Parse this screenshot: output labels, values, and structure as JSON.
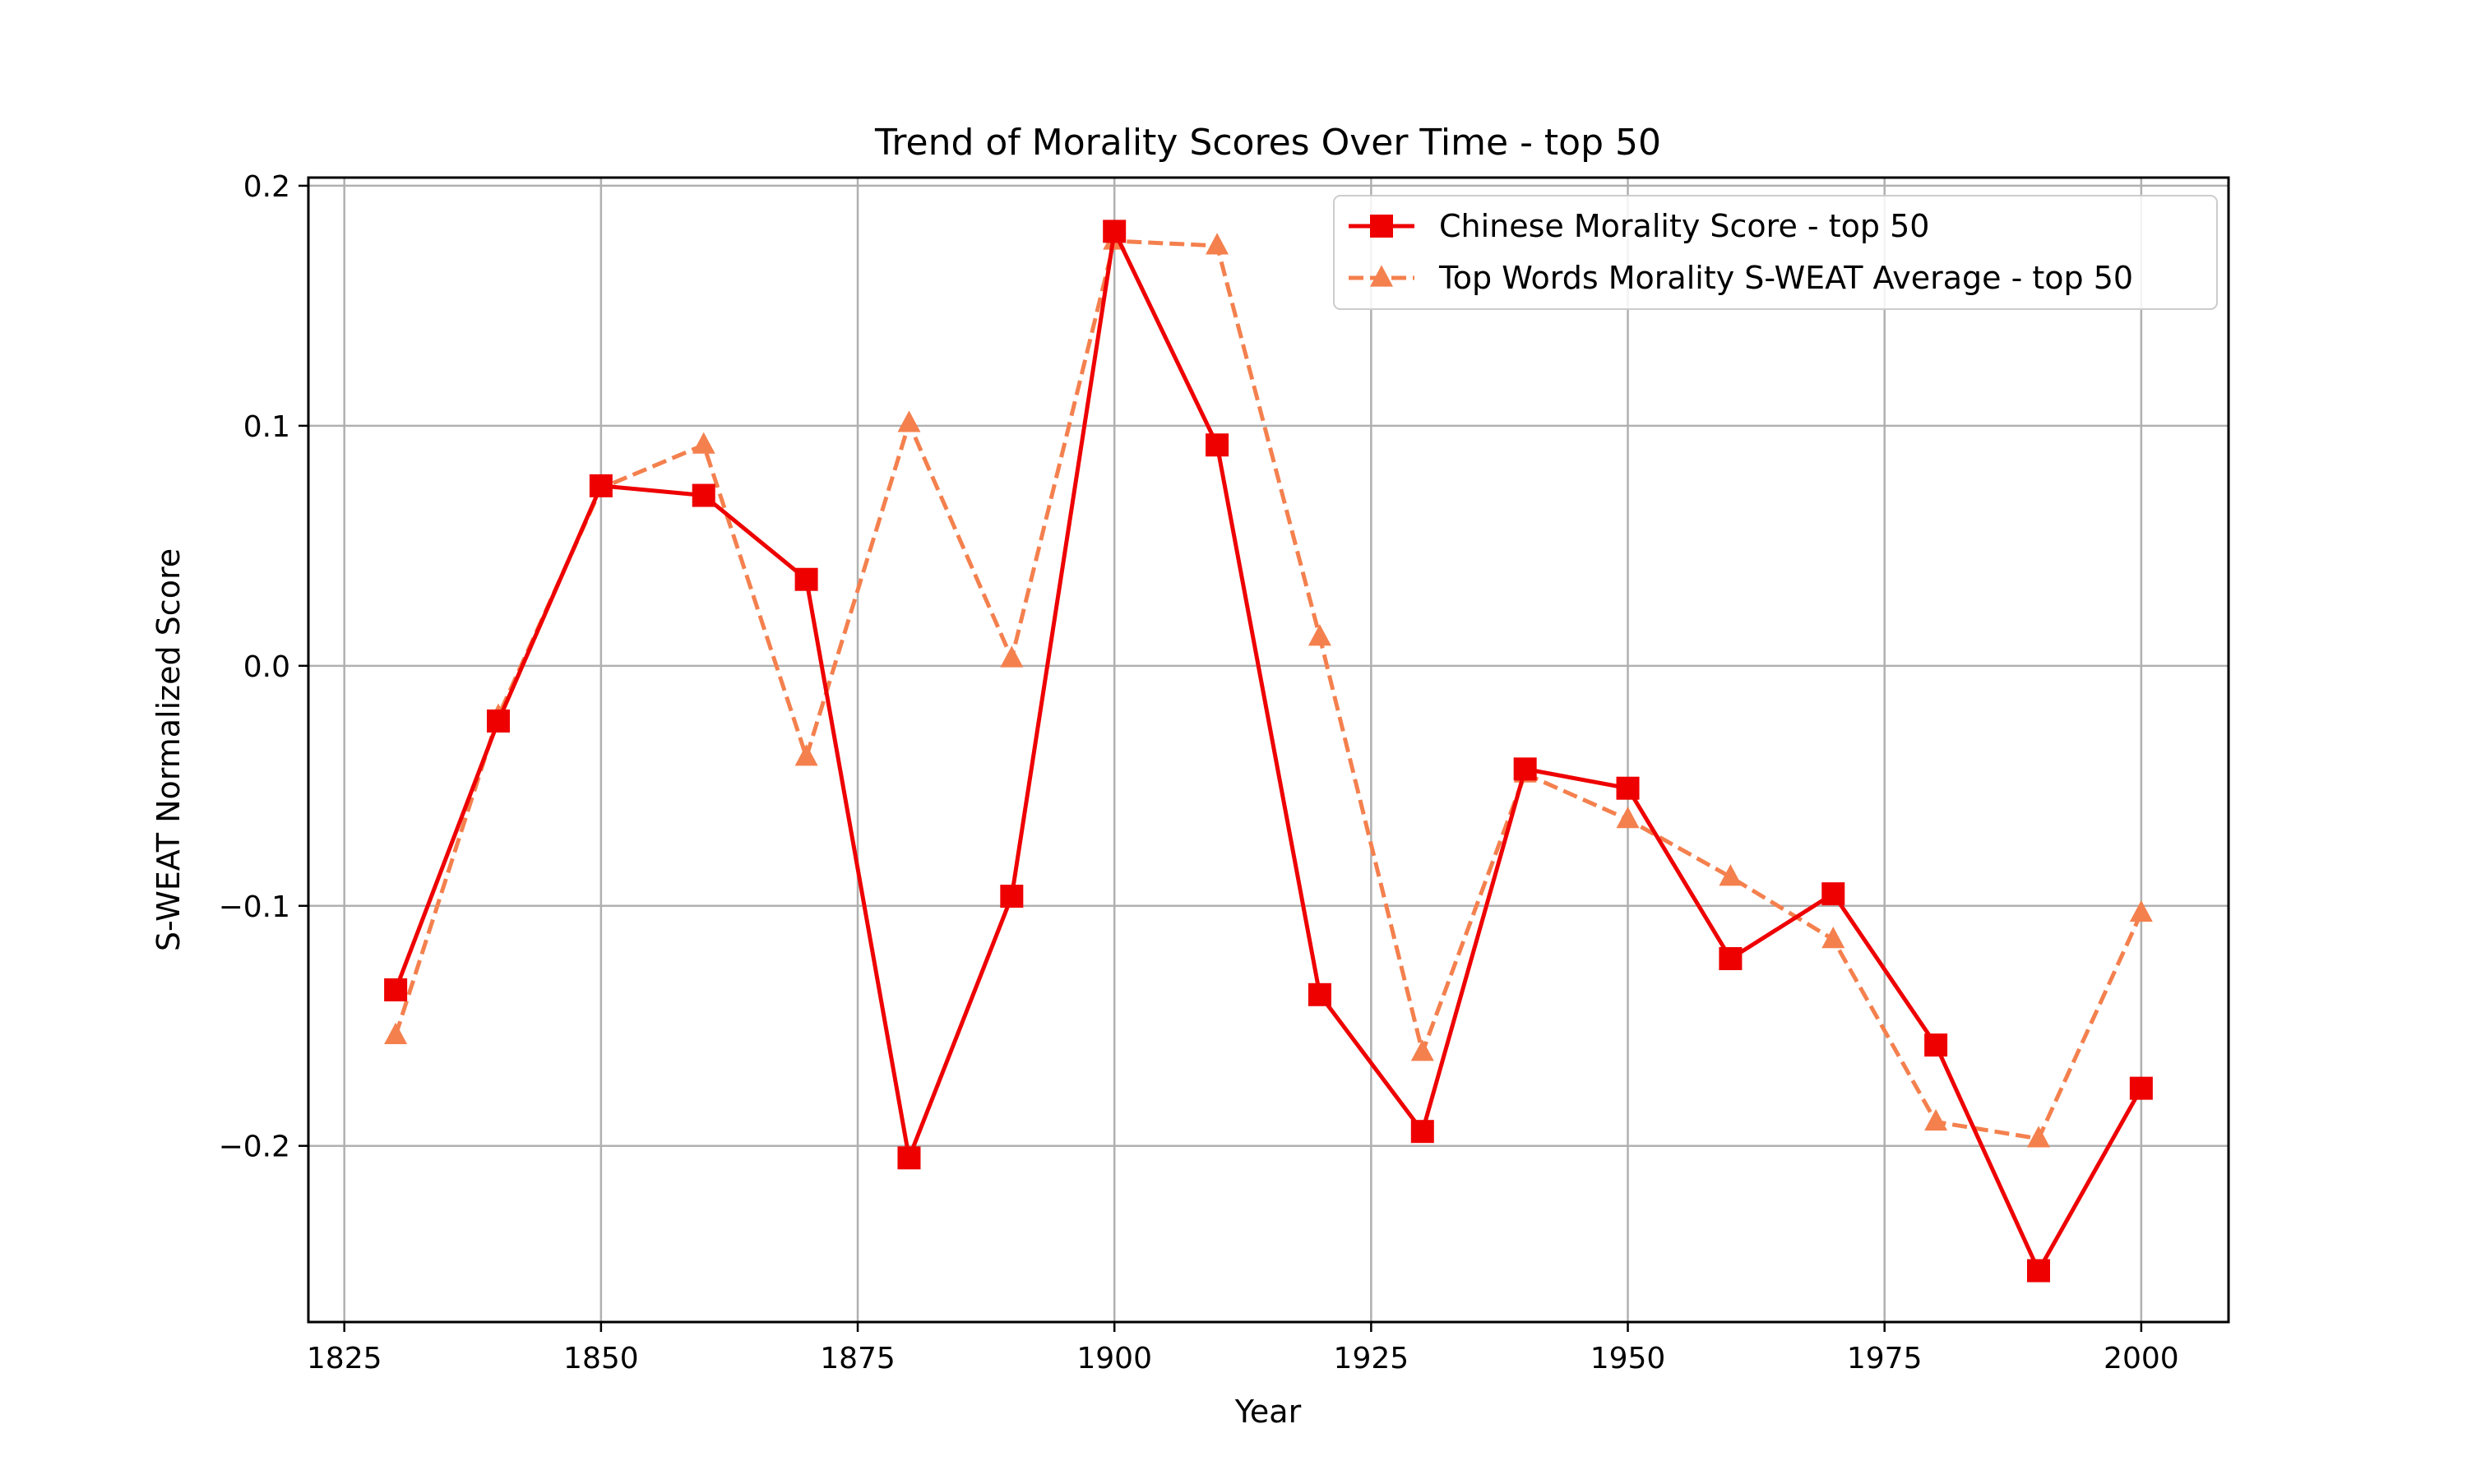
{
  "chart_data": {
    "type": "line",
    "title": "Trend of Morality Scores Over Time - top 50",
    "xlabel": "Year",
    "ylabel": "S-WEAT Normalized Score",
    "xlim": [
      1821.5,
      2008.5
    ],
    "ylim": [
      -0.2734,
      0.2034
    ],
    "x_ticks": [
      1825,
      1850,
      1875,
      1900,
      1925,
      1950,
      1975,
      2000
    ],
    "x_tick_labels": [
      "1825",
      "1850",
      "1875",
      "1900",
      "1925",
      "1950",
      "1975",
      "2000"
    ],
    "y_ticks": [
      -0.2,
      -0.1,
      0.0,
      0.1,
      0.2
    ],
    "y_tick_labels": [
      "−0.2",
      "−0.1",
      "0.0",
      "0.1",
      "0.2"
    ],
    "grid": true,
    "legend_position": "upper-right",
    "x": [
      1830,
      1840,
      1850,
      1860,
      1870,
      1880,
      1890,
      1900,
      1910,
      1920,
      1930,
      1940,
      1950,
      1960,
      1970,
      1980,
      1990,
      2000
    ],
    "series": [
      {
        "name": "Chinese Morality Score - top 50",
        "color": "#ee0000",
        "line_style": "solid",
        "marker": "square",
        "values": [
          -0.135,
          -0.023,
          0.075,
          0.071,
          0.036,
          -0.205,
          -0.096,
          0.181,
          0.092,
          -0.137,
          -0.194,
          -0.043,
          -0.051,
          -0.122,
          -0.095,
          -0.158,
          -0.252,
          -0.176
        ]
      },
      {
        "name": "Top Words Morality S-WEAT Average - top 50",
        "color": "#f4804e",
        "line_style": "dashed",
        "marker": "triangle",
        "values": [
          -0.154,
          -0.021,
          0.074,
          0.092,
          -0.038,
          0.101,
          0.003,
          0.177,
          0.175,
          0.012,
          -0.161,
          -0.045,
          -0.064,
          -0.088,
          -0.114,
          -0.19,
          -0.197,
          -0.103
        ]
      }
    ]
  }
}
